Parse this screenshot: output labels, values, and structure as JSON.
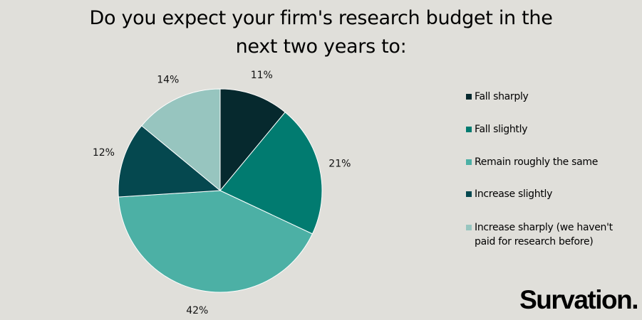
{
  "brand": {
    "logo_text": "Survation."
  },
  "chart_data": {
    "type": "pie",
    "title": "Do you expect your firm's research budget in the next two years to:",
    "title_lines": [
      "Do you expect your firm's research budget in the",
      "next two years to:"
    ],
    "legend_placement": "right",
    "slices": [
      {
        "label": "Fall sharply",
        "value": 11,
        "value_label": "11%",
        "color": "#06292e"
      },
      {
        "label": "Fall slightly",
        "value": 21,
        "value_label": "21%",
        "color": "#017b70"
      },
      {
        "label": "Remain roughly the same",
        "value": 42,
        "value_label": "42%",
        "color": "#4cb0a5"
      },
      {
        "label": "Increase slightly",
        "value": 12,
        "value_label": "12%",
        "color": "#05484f"
      },
      {
        "label": "Increase sharply (we haven't paid for research before)",
        "label_lines": [
          "Increase sharply (we haven't",
          "paid for research before)"
        ],
        "value": 14,
        "value_label": "14%",
        "color": "#97c5bf"
      }
    ]
  }
}
